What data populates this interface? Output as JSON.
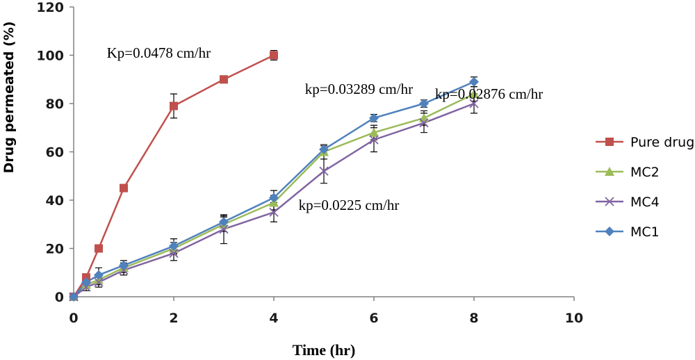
{
  "chart_data": {
    "type": "line",
    "xlabel": "Time (hr)",
    "ylabel": "Drug permeated (%)",
    "xlim": [
      0,
      10
    ],
    "ylim": [
      0,
      120
    ],
    "x_ticks": [
      0,
      2,
      4,
      6,
      8,
      10
    ],
    "y_ticks": [
      0,
      20,
      40,
      60,
      80,
      100,
      120
    ],
    "grid": false,
    "legend_position": "right",
    "series": [
      {
        "name": "Pure drug",
        "color": "#c0504d",
        "marker": "square",
        "x": [
          0,
          0.25,
          0.5,
          1,
          2,
          3,
          4
        ],
        "y": [
          0,
          8,
          20,
          45,
          79,
          90,
          100
        ],
        "err": [
          0,
          1.5,
          1.5,
          1.5,
          5,
          1.5,
          2
        ]
      },
      {
        "name": "MC2",
        "color": "#9bbb59",
        "marker": "triangle",
        "x": [
          0,
          0.25,
          0.5,
          1,
          2,
          3,
          4,
          5,
          6,
          7,
          8
        ],
        "y": [
          0,
          5,
          7,
          12,
          20,
          30,
          39,
          60,
          68,
          74,
          84
        ],
        "err": [
          0,
          1.5,
          2,
          2,
          2.5,
          3,
          3,
          3,
          3,
          3,
          3
        ]
      },
      {
        "name": "MC4",
        "color": "#8064a2",
        "marker": "x",
        "x": [
          0,
          0.25,
          0.5,
          1,
          2,
          3,
          4,
          5,
          6,
          7,
          8
        ],
        "y": [
          0,
          4,
          6,
          11,
          18,
          28,
          35,
          52,
          65,
          72,
          80
        ],
        "err": [
          0,
          1.5,
          2,
          2,
          3,
          6,
          4,
          5,
          5,
          4,
          4
        ]
      },
      {
        "name": "MC1",
        "color": "#4f81bd",
        "marker": "diamond",
        "x": [
          0,
          0.25,
          0.5,
          1,
          2,
          3,
          4,
          5,
          6,
          7,
          8
        ],
        "y": [
          0,
          6,
          9,
          13,
          21,
          31,
          41,
          61,
          74,
          80,
          89
        ],
        "err": [
          0,
          1.5,
          3,
          2,
          3,
          2.5,
          3,
          1.5,
          1.5,
          1.5,
          2
        ]
      }
    ],
    "annotations": [
      {
        "text": "Kp=0.0478 cm/hr",
        "x": 1.7,
        "y": 99
      },
      {
        "text": "kp=0.03289 cm/hr",
        "x": 5.7,
        "y": 84
      },
      {
        "text": "kp=0.02876 cm/hr",
        "x": 8.3,
        "y": 82
      },
      {
        "text": "kp=0.0225 cm/hr",
        "x": 5.5,
        "y": 36
      }
    ]
  }
}
